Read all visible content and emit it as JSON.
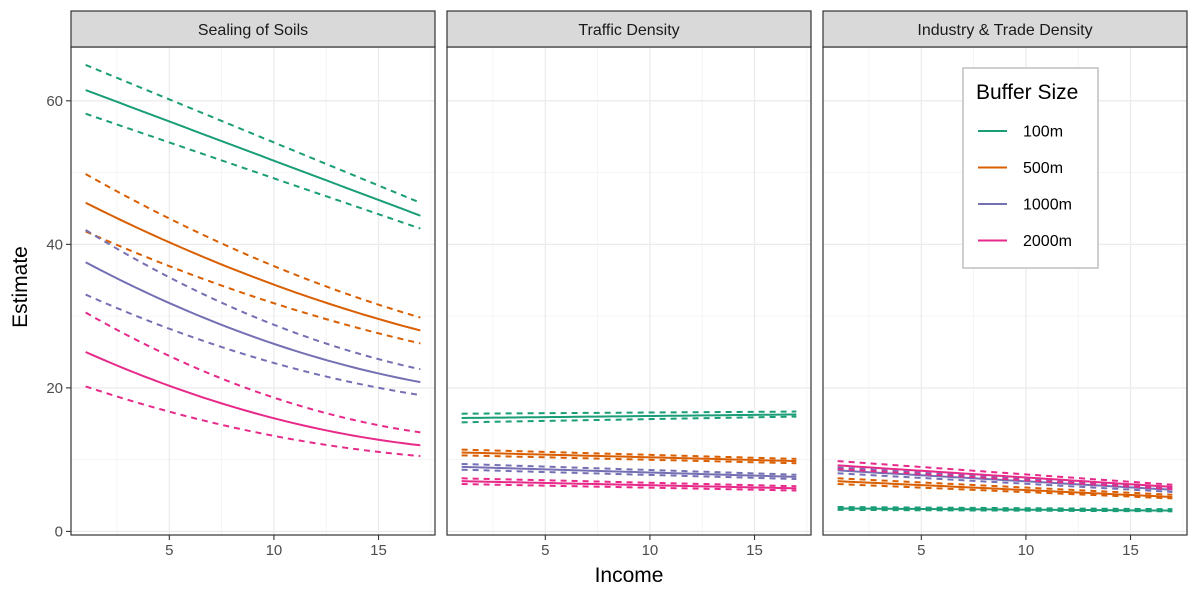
{
  "chart_data": {
    "type": "line",
    "xlabel": "Income",
    "ylabel": "Estimate",
    "xlim": [
      0.3,
      17.7
    ],
    "ylim": [
      -0.5,
      67.5
    ],
    "x_ticks": [
      5,
      10,
      15
    ],
    "y_ticks": [
      0,
      20,
      40,
      60
    ],
    "x_range": [
      1,
      17
    ],
    "grid": true,
    "legend": {
      "title": "Buffer Size",
      "position": "top-right of third panel",
      "entries": [
        "100m",
        "500m",
        "1000m",
        "2000m"
      ]
    },
    "colors": {
      "100m": "#1b9e77",
      "500m": "#d95f02",
      "1000m": "#7570b3",
      "2000m": "#e7298a"
    },
    "panels": [
      {
        "title": "Sealing of Soils",
        "series": [
          {
            "name": "100m",
            "estimate": [
              61.5,
              44.0
            ],
            "lower": [
              58.2,
              42.2
            ],
            "upper": [
              65.0,
              45.8
            ],
            "curve": 0.0
          },
          {
            "name": "500m",
            "estimate": [
              45.8,
              28.0
            ],
            "lower": [
              41.8,
              26.2
            ],
            "upper": [
              49.8,
              29.8
            ],
            "curve": 0.08
          },
          {
            "name": "1000m",
            "estimate": [
              37.5,
              20.8
            ],
            "lower": [
              33.0,
              19.0
            ],
            "upper": [
              42.0,
              22.6
            ],
            "curve": 0.12
          },
          {
            "name": "2000m",
            "estimate": [
              25.0,
              12.0
            ],
            "lower": [
              20.2,
              10.5
            ],
            "upper": [
              30.5,
              13.8
            ],
            "curve": 0.15
          }
        ]
      },
      {
        "title": "Traffic Density",
        "series": [
          {
            "name": "100m",
            "estimate": [
              15.8,
              16.3
            ],
            "lower": [
              15.2,
              16.0
            ],
            "upper": [
              16.4,
              16.7
            ],
            "curve": 0.0
          },
          {
            "name": "500m",
            "estimate": [
              11.0,
              9.8
            ],
            "lower": [
              10.6,
              9.5
            ],
            "upper": [
              11.4,
              10.1
            ],
            "curve": 0.0
          },
          {
            "name": "1000m",
            "estimate": [
              9.0,
              7.6
            ],
            "lower": [
              8.6,
              7.3
            ],
            "upper": [
              9.4,
              7.9
            ],
            "curve": 0.0
          },
          {
            "name": "2000m",
            "estimate": [
              7.0,
              6.0
            ],
            "lower": [
              6.6,
              5.7
            ],
            "upper": [
              7.4,
              6.3
            ],
            "curve": 0.0
          }
        ]
      },
      {
        "title": "Industry & Trade Density",
        "series": [
          {
            "name": "100m",
            "estimate": [
              3.2,
              2.9
            ],
            "lower": [
              3.0,
              2.8
            ],
            "upper": [
              3.4,
              3.1
            ],
            "curve": 0.0
          },
          {
            "name": "500m",
            "estimate": [
              7.0,
              4.8
            ],
            "lower": [
              6.6,
              4.6
            ],
            "upper": [
              7.4,
              5.1
            ],
            "curve": 0.0
          },
          {
            "name": "1000m",
            "estimate": [
              8.5,
              5.8
            ],
            "lower": [
              8.1,
              5.5
            ],
            "upper": [
              8.9,
              6.1
            ],
            "curve": 0.0
          },
          {
            "name": "2000m",
            "estimate": [
              9.2,
              6.2
            ],
            "lower": [
              8.7,
              5.9
            ],
            "upper": [
              9.8,
              6.5
            ],
            "curve": 0.0
          }
        ]
      }
    ]
  }
}
